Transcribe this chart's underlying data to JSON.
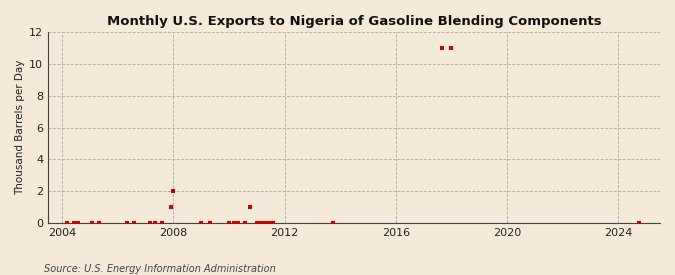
{
  "title": "Monthly U.S. Exports to Nigeria of Gasoline Blending Components",
  "ylabel": "Thousand Barrels per Day",
  "source": "Source: U.S. Energy Information Administration",
  "background_color": "#f5ead8",
  "plot_bg_color": "#f5ead8",
  "marker_color": "#cc0000",
  "grid_color": "#aaaaaa",
  "ylim": [
    0,
    12
  ],
  "yticks": [
    0,
    2,
    4,
    6,
    8,
    10,
    12
  ],
  "xlim_start": 2003.5,
  "xlim_end": 2025.5,
  "xticks": [
    2004,
    2008,
    2012,
    2016,
    2020,
    2024
  ],
  "data_points": [
    [
      2004.17,
      0.0
    ],
    [
      2004.42,
      0.0
    ],
    [
      2004.58,
      0.0
    ],
    [
      2005.08,
      0.0
    ],
    [
      2005.33,
      0.0
    ],
    [
      2006.33,
      0.0
    ],
    [
      2006.58,
      0.0
    ],
    [
      2007.17,
      0.0
    ],
    [
      2007.33,
      0.0
    ],
    [
      2007.58,
      0.0
    ],
    [
      2007.92,
      1.0
    ],
    [
      2008.0,
      2.0
    ],
    [
      2009.0,
      0.0
    ],
    [
      2009.33,
      0.0
    ],
    [
      2010.0,
      0.0
    ],
    [
      2010.17,
      0.0
    ],
    [
      2010.33,
      0.0
    ],
    [
      2010.58,
      0.0
    ],
    [
      2010.75,
      1.0
    ],
    [
      2011.0,
      0.0
    ],
    [
      2011.08,
      0.0
    ],
    [
      2011.17,
      0.0
    ],
    [
      2011.25,
      0.0
    ],
    [
      2011.33,
      0.0
    ],
    [
      2011.42,
      0.0
    ],
    [
      2011.5,
      0.0
    ],
    [
      2011.58,
      0.0
    ],
    [
      2013.75,
      0.0
    ],
    [
      2017.67,
      11.0
    ],
    [
      2018.0,
      11.0
    ],
    [
      2024.75,
      0.0
    ]
  ]
}
